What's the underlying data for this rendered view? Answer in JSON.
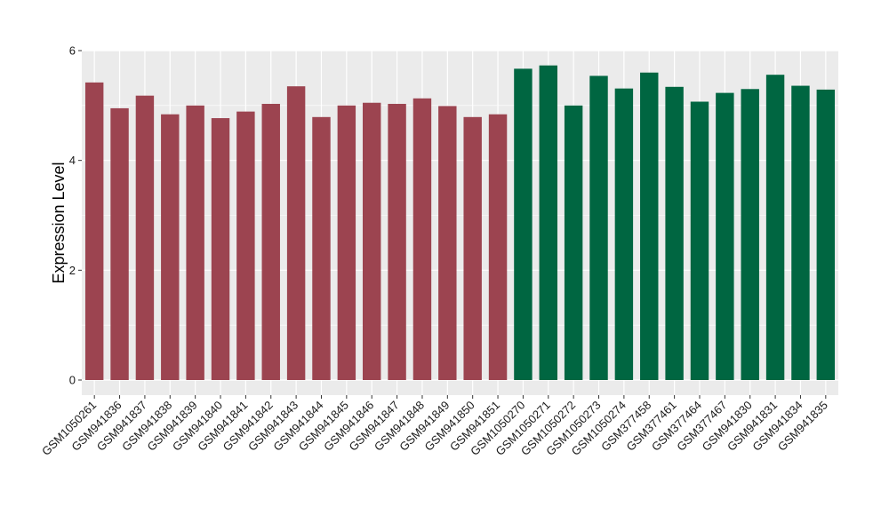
{
  "chart_data": {
    "type": "bar",
    "title": "",
    "xlabel": "",
    "ylabel": "Expression Level",
    "ylim": [
      0,
      6
    ],
    "yticks": [
      0,
      2,
      4,
      6
    ],
    "grid": true,
    "legend": "none",
    "background_color": "#ebebeb",
    "grid_color": "#ffffff",
    "categories": [
      "GSM1050261",
      "GSM941836",
      "GSM941837",
      "GSM941838",
      "GSM941839",
      "GSM941840",
      "GSM941841",
      "GSM941842",
      "GSM941843",
      "GSM941844",
      "GSM941845",
      "GSM941846",
      "GSM941847",
      "GSM941848",
      "GSM941849",
      "GSM941850",
      "GSM941851",
      "GSM1050270",
      "GSM1050271",
      "GSM1050272",
      "GSM1050273",
      "GSM1050274",
      "GSM377458",
      "GSM377461",
      "GSM377464",
      "GSM377467",
      "GSM941830",
      "GSM941831",
      "GSM941834",
      "GSM941835"
    ],
    "values": [
      5.42,
      4.95,
      5.18,
      4.84,
      5.0,
      4.77,
      4.89,
      5.03,
      5.35,
      4.79,
      5.0,
      5.05,
      5.03,
      5.13,
      4.99,
      4.79,
      4.84,
      5.67,
      5.73,
      5.0,
      5.54,
      5.31,
      5.6,
      5.34,
      5.07,
      5.23,
      5.3,
      5.56,
      5.36,
      5.29
    ],
    "bar_colors": [
      "#9c4450",
      "#9c4450",
      "#9c4450",
      "#9c4450",
      "#9c4450",
      "#9c4450",
      "#9c4450",
      "#9c4450",
      "#9c4450",
      "#9c4450",
      "#9c4450",
      "#9c4450",
      "#9c4450",
      "#9c4450",
      "#9c4450",
      "#9c4450",
      "#9c4450",
      "#006641",
      "#006641",
      "#006641",
      "#006641",
      "#006641",
      "#006641",
      "#006641",
      "#006641",
      "#006641",
      "#006641",
      "#006641",
      "#006641",
      "#006641"
    ]
  }
}
